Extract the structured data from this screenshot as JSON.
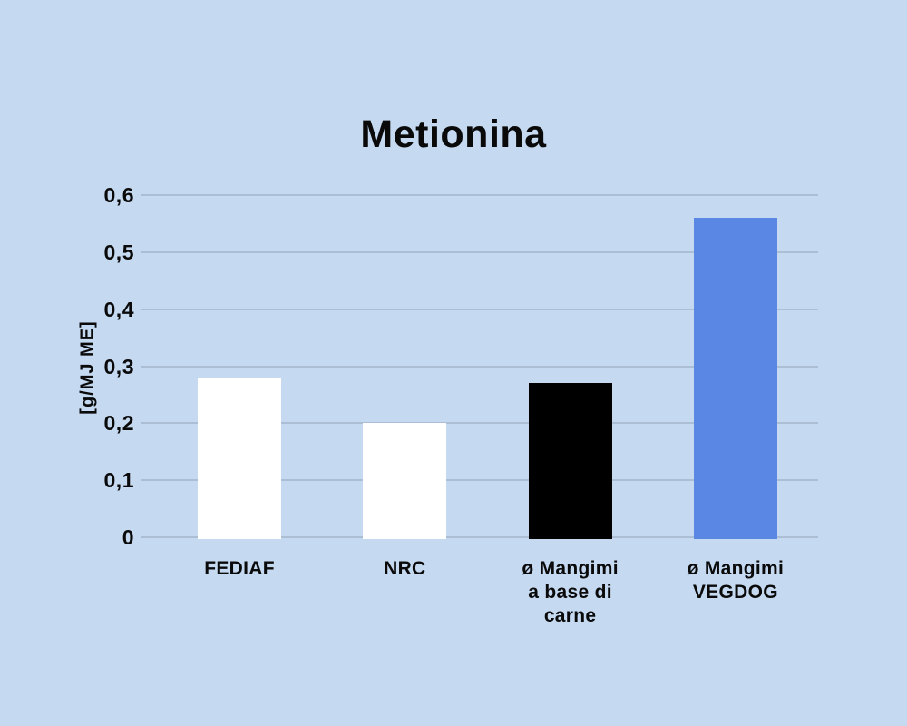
{
  "chart_data": {
    "type": "bar",
    "title": "Metionina",
    "ylabel": "[g/MJ ME]",
    "categories": [
      "FEDIAF",
      "NRC",
      "ø Mangimi\na base di\ncarne",
      "ø Mangimi\nVEGDOG"
    ],
    "values": [
      0.28,
      0.2,
      0.27,
      0.56
    ],
    "bar_colors": [
      "#ffffff",
      "#ffffff",
      "#000000",
      "#5b87e4"
    ],
    "ylim": [
      0,
      0.6
    ],
    "yticks": [
      0,
      0.1,
      0.2,
      0.3,
      0.4,
      0.5,
      0.6
    ],
    "ytick_labels": [
      "0",
      "0,1",
      "0,2",
      "0,3",
      "0,4",
      "0,5",
      "0,6"
    ],
    "grid": true,
    "legend": "none",
    "colors": {
      "background": "#c5d9f1",
      "gridline": "#a7b8ce",
      "text": "#0a0a0a"
    }
  }
}
